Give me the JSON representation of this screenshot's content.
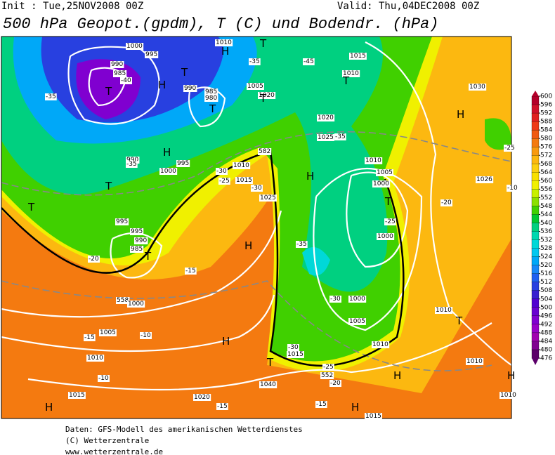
{
  "header": {
    "init": "Init : Tue,25NOV2008 00Z",
    "valid": "Valid: Thu,04DEC2008 00Z",
    "title": "500 hPa Geopot.(gpdm), T (C) und Bodendr. (hPa)"
  },
  "colorbar": {
    "levels": [
      600,
      596,
      592,
      588,
      584,
      580,
      576,
      572,
      568,
      564,
      560,
      556,
      552,
      548,
      544,
      540,
      536,
      532,
      528,
      524,
      520,
      516,
      512,
      508,
      504,
      500,
      496,
      492,
      488,
      484,
      480,
      476
    ],
    "colors": [
      "#b4002a",
      "#d0102a",
      "#e02020",
      "#ee3a18",
      "#f05a10",
      "#f47a10",
      "#f89a10",
      "#fcb810",
      "#fcd010",
      "#f8e000",
      "#f0f000",
      "#c8f000",
      "#8ce000",
      "#40d000",
      "#00c830",
      "#00d080",
      "#00d8b0",
      "#00d8d8",
      "#00c8f0",
      "#00a8f8",
      "#1888f8",
      "#2060f0",
      "#2840e0",
      "#3820d0",
      "#5000d0",
      "#6800d0",
      "#8000d0",
      "#9800c8",
      "#a000b0",
      "#800090",
      "#5c006a"
    ]
  },
  "map": {
    "labels": [
      "1000",
      "995",
      "990",
      "985",
      "-40",
      "H",
      "T",
      "990",
      "985",
      "980",
      "T",
      "1005",
      "1020",
      "T",
      "1010",
      "H",
      "T",
      "-35",
      "-45",
      "1015",
      "1010",
      "T",
      "1030",
      "H",
      "-35",
      "T",
      "990",
      "-35",
      "1000",
      "995",
      "H",
      "T",
      "-30",
      "1010",
      "1015",
      "582",
      "1025",
      "-25",
      "-30",
      "995",
      "995",
      "990",
      "985",
      "T",
      "-20",
      "-15",
      "558",
      "1000",
      "H",
      "1020",
      "1025",
      "H",
      "-35",
      "1010",
      "1005",
      "1000",
      "T",
      "-25",
      "1000",
      "-35",
      "-30",
      "1000",
      "1005",
      "1010",
      "1015",
      "-30",
      "-25",
      "552",
      "-20",
      "T",
      "1040",
      "H",
      "1020",
      "-15",
      "1005",
      "-15",
      "1010",
      "-10",
      "1015",
      "H",
      "H",
      "-15",
      "1015",
      "1010",
      "H",
      "-25",
      "1026",
      "-20",
      "T",
      "1010",
      "H",
      "1010",
      "-10",
      "T",
      "-10"
    ]
  },
  "footer": {
    "lines": [
      "Daten: GFS-Modell des amerikanischen Wetterdienstes",
      "(C) Wetterzentrale",
      "www.wetterzentrale.de"
    ]
  }
}
